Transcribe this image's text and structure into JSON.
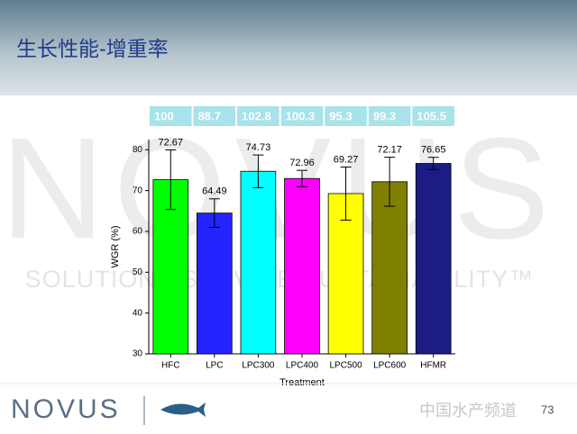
{
  "slide_title": "生长性能-增重率",
  "watermark": {
    "logo": "NOVUS",
    "tagline": "SOLUTIONS SERVICE SUSTAINABILITY™"
  },
  "footer": {
    "logo": "NOVUS",
    "page_number": "73",
    "site": "中国水产频道"
  },
  "chart_data": {
    "type": "bar",
    "relative_values": [
      100,
      88.7,
      102.8,
      100.3,
      95.3,
      99.3,
      105.5
    ],
    "categories": [
      "HFC",
      "LPC",
      "LPC300",
      "LPC400",
      "LPC500",
      "LPC600",
      "HFMR"
    ],
    "values": [
      72.67,
      64.49,
      74.73,
      72.96,
      69.27,
      72.17,
      76.65
    ],
    "errors": [
      7.3,
      3.5,
      4,
      2,
      6.5,
      6,
      1.5
    ],
    "colors": [
      "#00ff00",
      "#2424ff",
      "#00ffff",
      "#ff00ff",
      "#ffff00",
      "#808000",
      "#1c1c84"
    ],
    "ylabel": "WGR (%)",
    "xlabel": "Treatment",
    "ylim": [
      30,
      82.5
    ],
    "yticks": [
      30,
      40,
      50,
      60,
      70,
      80
    ]
  }
}
